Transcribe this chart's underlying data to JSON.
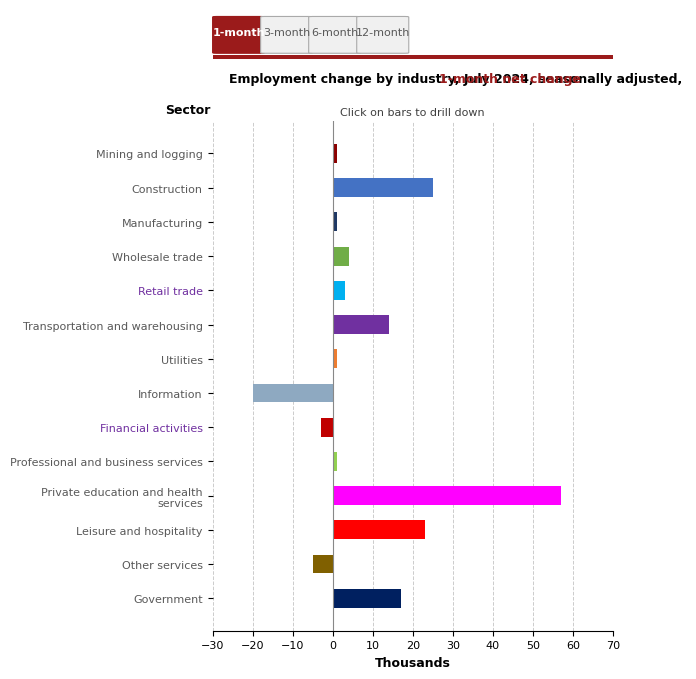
{
  "title_black": "Employment change by industry, July 2024, seasonally adjusted, ",
  "title_red": "1-month net change",
  "subtitle": "Click on bars to drill down",
  "ylabel": "Sector",
  "xlabel": "Thousands",
  "categories": [
    "Mining and logging",
    "Construction",
    "Manufacturing",
    "Wholesale trade",
    "Retail trade",
    "Transportation and warehousing",
    "Utilities",
    "Information",
    "Financial activities",
    "Professional and business services",
    "Private education and health\nservices",
    "Leisure and hospitality",
    "Other services",
    "Government"
  ],
  "values": [
    1,
    25,
    1,
    4,
    3,
    14,
    1,
    -20,
    -3,
    1,
    57,
    23,
    -5,
    17
  ],
  "colors": [
    "#8B0000",
    "#4472C4",
    "#1F3864",
    "#70AD47",
    "#00B0F0",
    "#7030A0",
    "#ED7D31",
    "#8EA9C1",
    "#C00000",
    "#92D050",
    "#FF00FF",
    "#FF0000",
    "#806000",
    "#002060"
  ],
  "xlim": [
    -30,
    70
  ],
  "xticks": [
    -30,
    -20,
    -10,
    0,
    10,
    20,
    30,
    40,
    50,
    60,
    70
  ],
  "tab_labels": [
    "1-month",
    "3-month",
    "6-month",
    "12-month"
  ],
  "tab_active": 0,
  "tab_active_color": "#9B1B1B",
  "tab_inactive_color": "#F0F0F0",
  "tab_border_color": "#AAAAAA",
  "header_bar_color": "#9B1B1B",
  "bg_color": "#FFFFFF",
  "grid_color": "#CCCCCC",
  "label_colors": [
    "#595959",
    "#595959",
    "#595959",
    "#595959",
    "#595959",
    "#7030A0",
    "#595959",
    "#595959",
    "#595959",
    "#7030A0",
    "#595959",
    "#595959",
    "#595959",
    "#595959"
  ]
}
